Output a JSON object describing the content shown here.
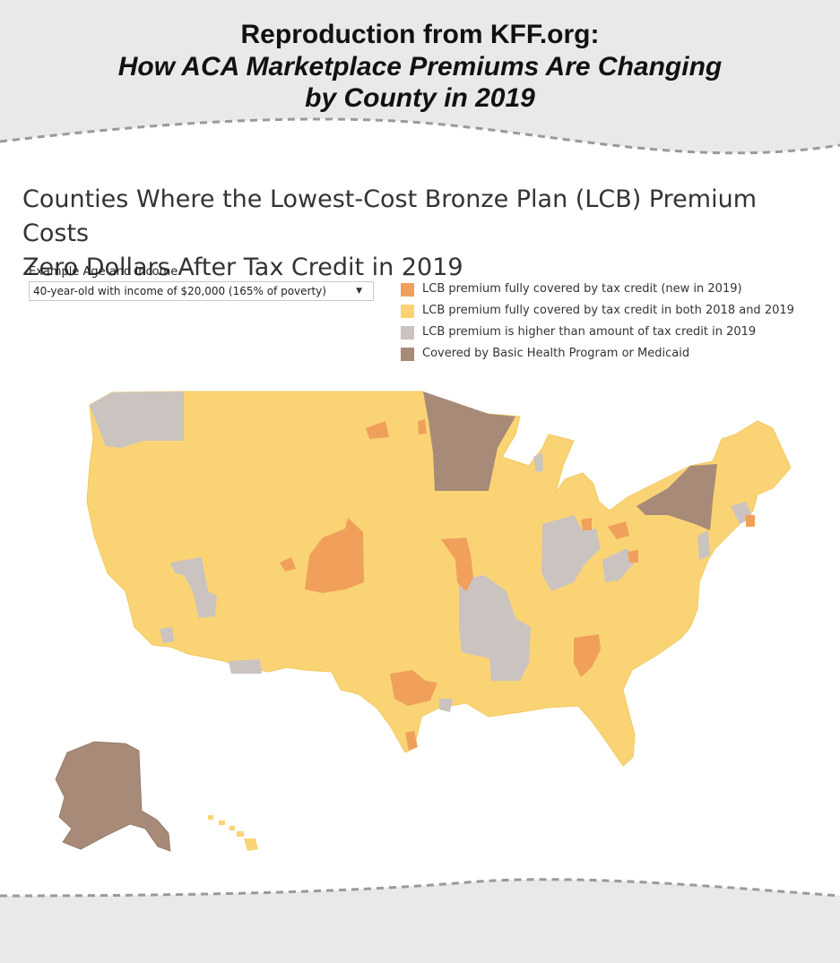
{
  "header": {
    "line1": "Reproduction from KFF.org:",
    "line2": "How ACA Marketplace Premiums Are Changing",
    "line3": "by County in 2019"
  },
  "chart": {
    "title_line1": "Counties Where the Lowest-Cost Bronze Plan (LCB) Premium Costs",
    "title_line2": "Zero Dollars After Tax Credit in 2019"
  },
  "filter": {
    "label": "Example Age and Income",
    "selected": "40-year-old with income of $20,000 (165% of poverty)"
  },
  "legend": [
    {
      "label": "LCB premium fully covered by tax credit (new in 2019)",
      "color": "#f0a05a"
    },
    {
      "label": "LCB premium fully covered by tax credit in both 2018 and 2019",
      "color": "#fad474"
    },
    {
      "label": "LCB premium is higher than amount of tax credit in 2019",
      "color": "#cbc3c0"
    },
    {
      "label": "Covered by Basic Health Program or Medicaid",
      "color": "#a88a78"
    }
  ],
  "colors": {
    "background": "#e9e9e9",
    "card": "#ffffff",
    "yellow": "#fad474",
    "orange": "#f0a05a",
    "gray": "#cbc3c0",
    "brown": "#a88a78"
  }
}
